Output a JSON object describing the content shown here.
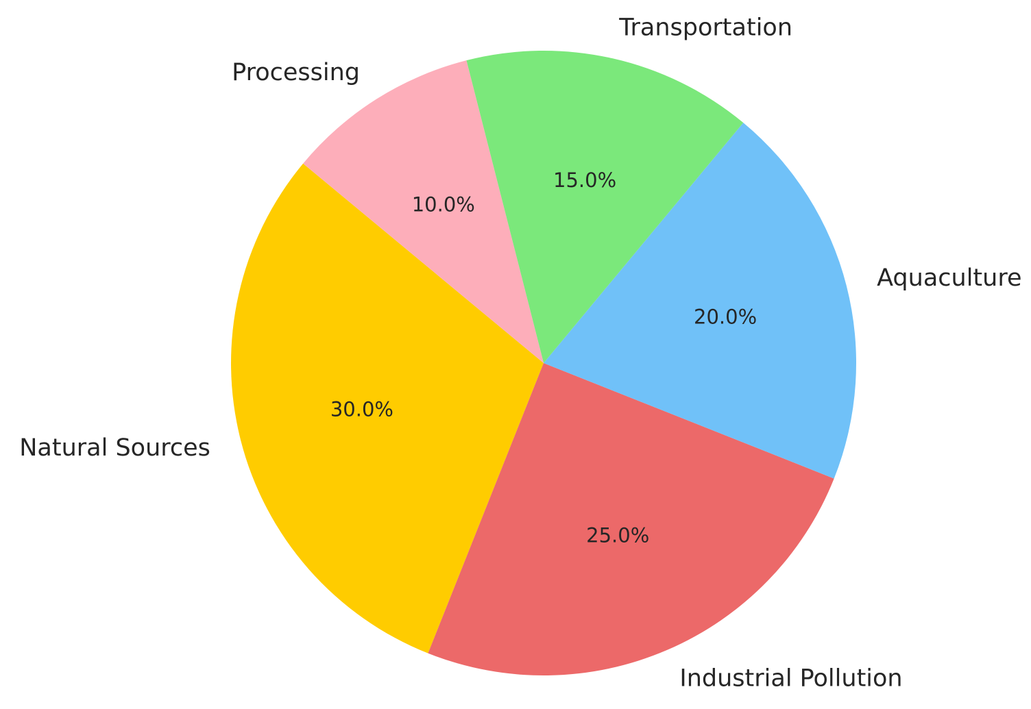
{
  "chart_data": {
    "type": "pie",
    "slices": [
      {
        "label": "Natural Sources",
        "value": 30.0,
        "pct_label": "30.0%",
        "color": "#FFCC00"
      },
      {
        "label": "Industrial Pollution",
        "value": 25.0,
        "pct_label": "25.0%",
        "color": "#EC6969"
      },
      {
        "label": "Aquaculture",
        "value": 20.0,
        "pct_label": "20.0%",
        "color": "#70C1F8"
      },
      {
        "label": "Transportation",
        "value": 15.0,
        "pct_label": "15.0%",
        "color": "#7BE87B"
      },
      {
        "label": "Processing",
        "value": 10.0,
        "pct_label": "10.0%",
        "color": "#FDAEBA"
      }
    ],
    "start_angle": "approximately 140 degrees (counter-clockwise ordering)",
    "legend": "none",
    "title": ""
  }
}
